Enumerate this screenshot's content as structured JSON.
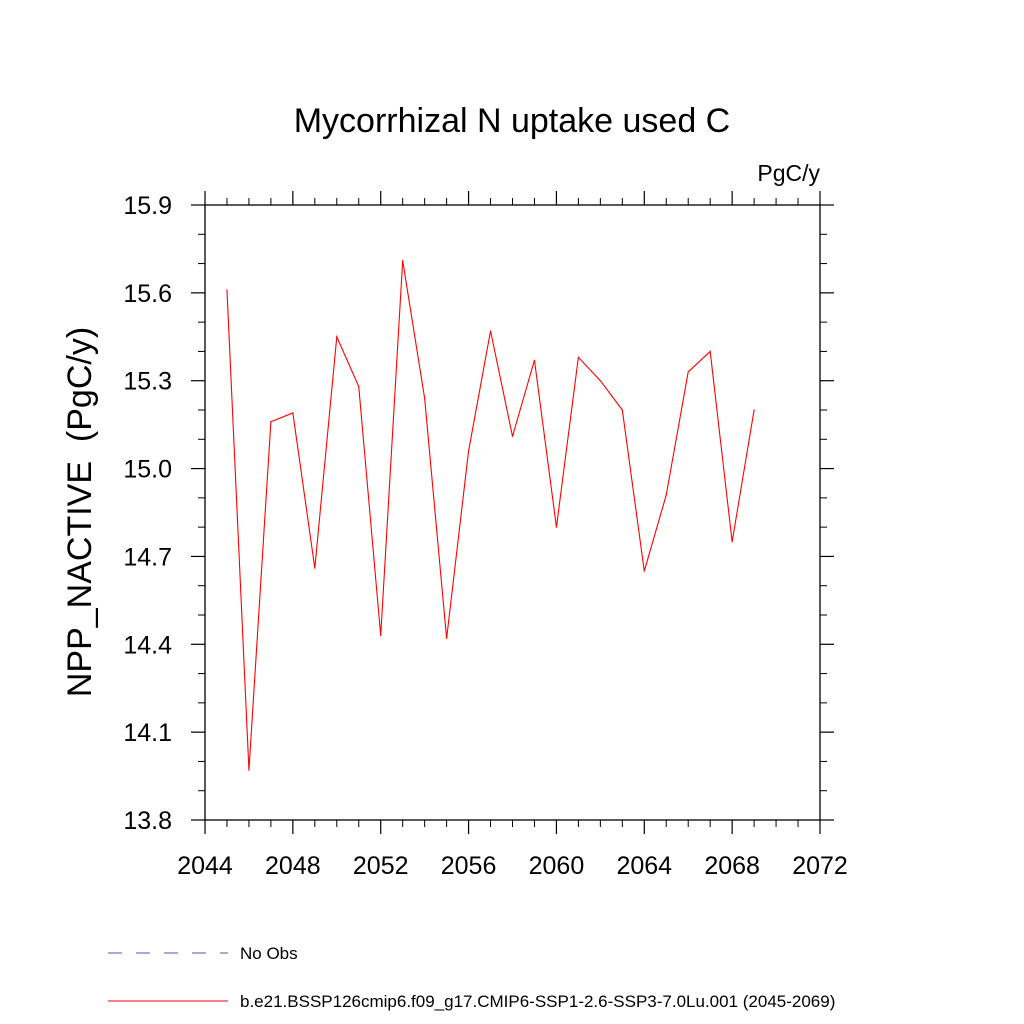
{
  "chart_data": {
    "type": "line",
    "title": "Mycorrhizal N uptake used C",
    "units_label": "PgC/y",
    "ylabel": "NPP_NACTIVE  (PgC/y)",
    "xlabel": "",
    "xlim": [
      2044,
      2072
    ],
    "ylim": [
      13.8,
      15.9
    ],
    "x_ticks": [
      2044,
      2048,
      2052,
      2056,
      2060,
      2064,
      2068,
      2072
    ],
    "x_tick_labels": [
      "2044",
      "2048",
      "2052",
      "2056",
      "2060",
      "2064",
      "2068",
      "2072"
    ],
    "y_ticks": [
      13.8,
      14.1,
      14.4,
      14.7,
      15.0,
      15.3,
      15.6,
      15.9
    ],
    "y_tick_labels": [
      "13.8",
      "14.1",
      "14.4",
      "14.7",
      "15.0",
      "15.3",
      "15.6",
      "15.9"
    ],
    "grid": false,
    "legend_position": "bottom-left",
    "series": [
      {
        "name": "b.e21.BSSP126cmip6.f09_g17.CMIP6-SSP1-2.6-SSP3-7.0Lu.001 (2045-2069)",
        "color": "#ff0000",
        "x": [
          2045,
          2046,
          2047,
          2048,
          2049,
          2050,
          2051,
          2052,
          2053,
          2054,
          2055,
          2056,
          2057,
          2058,
          2059,
          2060,
          2061,
          2062,
          2063,
          2064,
          2065,
          2066,
          2067,
          2068,
          2069
        ],
        "y": [
          15.61,
          13.97,
          15.16,
          15.19,
          14.66,
          15.45,
          15.28,
          14.43,
          15.71,
          15.24,
          14.42,
          15.06,
          15.47,
          15.11,
          15.37,
          14.8,
          15.38,
          15.3,
          15.2,
          14.65,
          14.91,
          15.33,
          15.4,
          14.75,
          15.2
        ]
      },
      {
        "name": "No Obs",
        "color": "#5a4fb0",
        "dashed": true,
        "x": [],
        "y": []
      }
    ]
  }
}
